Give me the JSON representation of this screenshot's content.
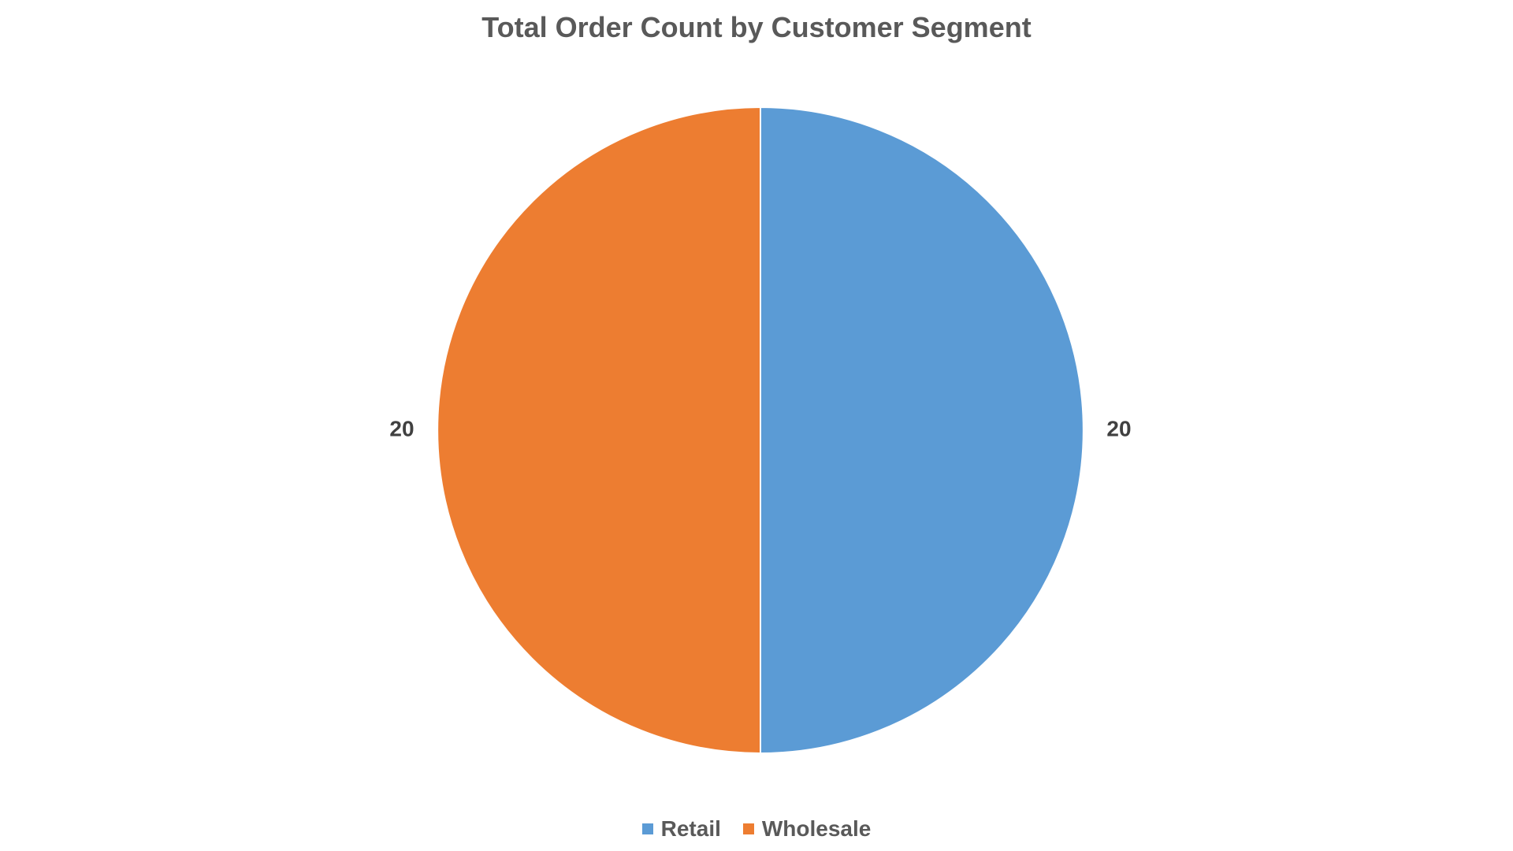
{
  "chart_data": {
    "type": "pie",
    "title": "Total Order Count by Customer Segment",
    "categories": [
      "Retail",
      "Wholesale"
    ],
    "values": [
      20,
      20
    ],
    "colors": [
      "#5B9BD5",
      "#ED7D31"
    ],
    "data_labels": [
      "20",
      "20"
    ],
    "legend_placement": "bottom",
    "start_angle_deg": 0,
    "direction": "clockwise"
  },
  "legend": {
    "items": [
      {
        "label": "Retail",
        "color": "#5B9BD5"
      },
      {
        "label": "Wholesale",
        "color": "#ED7D31"
      }
    ]
  }
}
